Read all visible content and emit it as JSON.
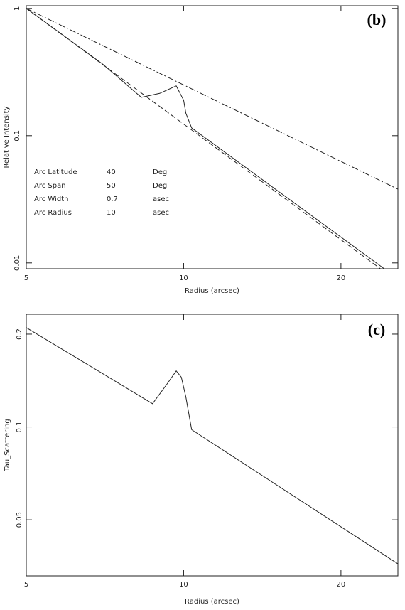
{
  "chart_data": [
    {
      "type": "line",
      "label": "(b)",
      "xlabel": "Radius (arcsec)",
      "ylabel": "Relative Intensity",
      "xscale": "log",
      "yscale": "log",
      "xlim": [
        5,
        25.7
      ],
      "xticks": [
        5,
        10,
        20
      ],
      "ylim": [
        0.009,
        1.05
      ],
      "yticks": [
        1,
        0.1,
        0.01
      ],
      "series": [
        {
          "line_style": "solid",
          "color": "#222222",
          "x": [
            5,
            6,
            7,
            8.3,
            9,
            9.68,
            10,
            10.1,
            10.36,
            24.2
          ],
          "values": [
            1,
            0.58,
            0.365,
            0.2,
            0.215,
            0.246,
            0.19,
            0.15,
            0.115,
            0.009
          ]
        },
        {
          "line_style": "dashed",
          "color": "#222222",
          "x": [
            5,
            23.8
          ],
          "values": [
            1,
            0.009
          ]
        },
        {
          "line_style": "dashdot",
          "color": "#222222",
          "x": [
            5,
            25.7
          ],
          "values": [
            1,
            0.038
          ]
        }
      ],
      "annotations": [
        [
          "Arc Latitude",
          "40",
          "Deg"
        ],
        [
          "Arc Span",
          "50",
          "Deg"
        ],
        [
          "Arc Width",
          "0.7",
          "asec"
        ],
        [
          "Arc Radius",
          "10",
          "asec"
        ]
      ]
    },
    {
      "type": "line",
      "label": "(c)",
      "xlabel": "Radius (arcsec)",
      "ylabel": "Tau_Scattering",
      "xscale": "log",
      "yscale": "log",
      "xlim": [
        5,
        25.7
      ],
      "xticks": [
        5,
        10,
        20
      ],
      "ylim": [
        0.0329,
        0.232
      ],
      "yticks": [
        0.2,
        0.1,
        0.05
      ],
      "series": [
        {
          "line_style": "solid",
          "color": "#222222",
          "x": [
            5,
            8.72,
            9.3,
            9.68,
            9.9,
            10.1,
            10.36,
            25.7
          ],
          "values": [
            0.21,
            0.119,
            0.138,
            0.152,
            0.145,
            0.125,
            0.098,
            0.036
          ]
        }
      ]
    }
  ]
}
